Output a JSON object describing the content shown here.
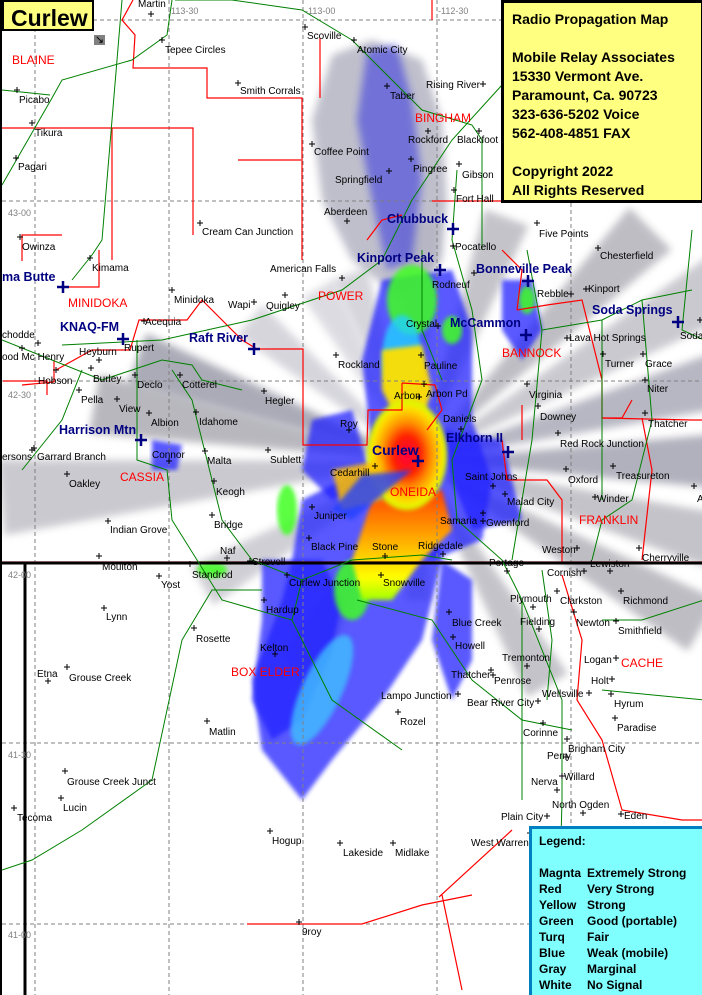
{
  "title": "Curlew",
  "info_box": {
    "lines": [
      "Radio Propagation Map",
      "",
      "Mobile Relay Associates",
      "15330 Vermont Ave.",
      "Paramount, Ca. 90723",
      "323-636-5202 Voice",
      "562-408-4851 FAX",
      "",
      "Copyright 2022",
      "All Rights Reserved"
    ]
  },
  "legend": {
    "heading": "Legend:",
    "items": [
      {
        "color": "Magnta",
        "meaning": "Extremely Strong",
        "hex": "#ff00ff"
      },
      {
        "color": "Red",
        "meaning": "Very Strong",
        "hex": "#ff0000"
      },
      {
        "color": "Yellow",
        "meaning": "Strong",
        "hex": "#ffff00"
      },
      {
        "color": "Green",
        "meaning": "Good (portable)",
        "hex": "#00ff00"
      },
      {
        "color": "Turq",
        "meaning": "Fair",
        "hex": "#00ffff"
      },
      {
        "color": "Blue",
        "meaning": "Weak (mobile)",
        "hex": "#0000ff"
      },
      {
        "color": "Gray",
        "meaning": "Marginal",
        "hex": "#808080"
      },
      {
        "color": "White",
        "meaning": "No Signal",
        "hex": "#ffffff"
      }
    ]
  },
  "grid_labels": [
    "-113-30",
    "-113-00",
    "-112-30",
    "43-00",
    "42-30",
    "42-00",
    "41-30",
    "41-00"
  ],
  "counties": [
    "BLAINE",
    "MINIDOKA",
    "POWER",
    "BINGHAM",
    "BANNOCK",
    "CASSIA",
    "ONEIDA",
    "FRANKLIN",
    "BOX ELDER",
    "CACHE"
  ],
  "stations": [
    "ma Butte",
    "KNAQ-FM",
    "Raft River",
    "Harrison Mtn",
    "Kinport Peak",
    "Bonneville Peak",
    "Chubbuck",
    "McCammon",
    "Soda Springs",
    "Elkhorn II",
    "Curlew"
  ],
  "towns": [
    "Martin",
    "Tepee Circles",
    "Smith Corrals",
    "Scoville",
    "Atomic City",
    "Rising River",
    "Taber",
    "Rockford",
    "Blackfoot",
    "Coffee Point",
    "Pingree",
    "Gibson",
    "Springfield",
    "Fort Hall",
    "Aberdeen",
    "Pocatello",
    "Five Points",
    "Chesterfield",
    "Picabo",
    "Tikura",
    "Pagari",
    "Owinza",
    "Kimama",
    "Cream Can Junction",
    "American Falls",
    "Minidoka",
    "Wapi",
    "Quigley",
    "Acequia",
    "Rupert",
    "Heyburn",
    "chodde",
    "ood Mc Henry",
    "Hobson",
    "Burley",
    "Declo",
    "Cotterel",
    "Hegler",
    "Pella",
    "View",
    "Albion",
    "Idahome",
    "Rockland",
    "Roy",
    "Garrard Branch",
    "ersons",
    "Connor",
    "Malta",
    "Sublett",
    "Oakley",
    "Keogh",
    "Indian Grove",
    "Bridge",
    "Juniper",
    "Naf",
    "Black Pine",
    "Stone",
    "Ridgedale",
    "Cedarhill",
    "Curlew Junction",
    "Snowville",
    "Moulton",
    "Strevell",
    "Standrod",
    "Yost",
    "Lynn",
    "Hardup",
    "Rosette",
    "Kelton",
    "Etna",
    "Grouse Creek",
    "Matlin",
    "Grouse Creek Junct",
    "Lucin",
    "Tecoma",
    "Hogup",
    "Lakeside",
    "Midlake",
    "West Warren",
    "9roy",
    "Portage",
    "Weston",
    "Cherryville",
    "Cornish",
    "Lewiston",
    "Plymouth",
    "Clarkston",
    "Richmond",
    "Blue Creek",
    "Fielding",
    "Newton",
    "Smithfield",
    "Howell",
    "Tremonton",
    "Logan",
    "Thatcher",
    "Penrose",
    "Holt",
    "Lampo Junction",
    "Bear River City",
    "Wellsville",
    "Hyrum",
    "Rozel",
    "Paradise",
    "Corinne",
    "Brigham City",
    "Perry",
    "Nerva",
    "Willard",
    "North Ogden",
    "Eden",
    "Plain City",
    "Rebble",
    "Kinport",
    "Lava Hot Springs",
    "Turner",
    "Grace",
    "Niter",
    "Virginia",
    "Downey",
    "Thatcher",
    "Red Rock Junction",
    "Treasureton",
    "Oxford",
    "Winder",
    "Saint Johns",
    "Malad City",
    "Gwenford",
    "Samaria",
    "Daniels",
    "Arbon",
    "Arbon Pd",
    "Pauline",
    "Crystal",
    "Rodneuf",
    "Soda",
    "A"
  ]
}
